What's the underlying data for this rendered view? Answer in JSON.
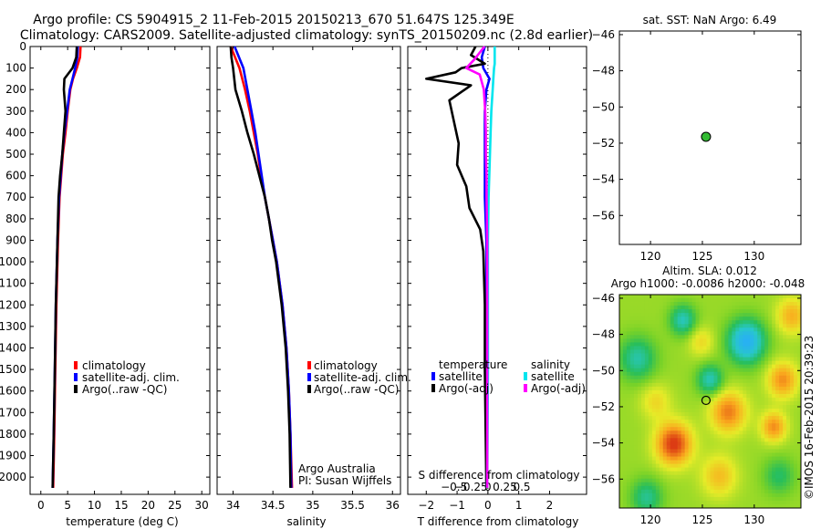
{
  "title": {
    "line1": "Argo profile: CS 5904915_2 11-Feb-2015 20150213_670 51.647S 125.349E",
    "line2": "Climatology: CARS2009. Satellite-adjusted climatology: synTS_20150209.nc (2.8d earlier)"
  },
  "colors": {
    "climatology": "#ff0000",
    "satellite": "#0000ff",
    "argo": "#000000",
    "sal_satellite": "#00e5ee",
    "sal_argo": "#ff00ff",
    "float_marker": "#33bb33"
  },
  "chart_data": [
    {
      "type": "line",
      "name": "temperature",
      "xlabel": "temperature (deg C)",
      "ylabel": "",
      "xlim": [
        -2,
        31.5
      ],
      "ylim": [
        2080,
        0
      ],
      "xticks": [
        0,
        5,
        10,
        15,
        20,
        25,
        30
      ],
      "yticks": [
        0,
        100,
        200,
        300,
        400,
        500,
        600,
        700,
        800,
        900,
        1000,
        1100,
        1200,
        1300,
        1400,
        1500,
        1600,
        1700,
        1800,
        1900,
        2000
      ],
      "legend": [
        "climatology",
        "satellite-adj. clim.",
        "Argo(..raw -QC)"
      ],
      "legend_position": "lower-center",
      "series": [
        {
          "name": "climatology",
          "color": "#ff0000",
          "depth": [
            0,
            50,
            100,
            150,
            200,
            300,
            400,
            500,
            700,
            900,
            1200,
            1500,
            1800,
            2050
          ],
          "values": [
            7.4,
            7.3,
            6.7,
            6.0,
            5.5,
            5.0,
            4.6,
            4.1,
            3.5,
            3.2,
            2.9,
            2.7,
            2.5,
            2.3
          ]
        },
        {
          "name": "satellite-adj. clim.",
          "color": "#0000ff",
          "depth": [
            0,
            50,
            100,
            150,
            200,
            300,
            400,
            500,
            700,
            900,
            1200,
            1500,
            1800,
            2050
          ],
          "values": [
            6.9,
            6.8,
            6.4,
            5.9,
            5.4,
            4.9,
            4.4,
            4.0,
            3.4,
            3.1,
            2.8,
            2.6,
            2.4,
            2.2
          ]
        },
        {
          "name": "Argo(..raw -QC)",
          "color": "#000000",
          "depth": [
            0,
            50,
            100,
            150,
            200,
            300,
            400,
            500,
            600,
            700,
            900,
            1200,
            1500,
            1800,
            2050
          ],
          "values": [
            6.7,
            6.6,
            5.9,
            4.4,
            4.3,
            4.6,
            4.3,
            4.0,
            3.6,
            3.3,
            3.1,
            2.8,
            2.6,
            2.4,
            2.2
          ]
        }
      ]
    },
    {
      "type": "line",
      "name": "salinity",
      "xlabel": "salinity",
      "xlim": [
        33.8,
        36.1
      ],
      "ylim": [
        2080,
        0
      ],
      "xticks": [
        34,
        34.5,
        35,
        35.5,
        36
      ],
      "legend": [
        "climatology",
        "satellite-adj. clim.",
        "Argo(..raw -QC)"
      ],
      "legend_position": "lower-right",
      "annotations": [
        "Argo Australia",
        "PI: Susan Wijffels"
      ],
      "series": [
        {
          "name": "climatology",
          "color": "#ff0000",
          "depth": [
            0,
            100,
            200,
            300,
            400,
            500,
            600,
            700,
            800,
            900,
            1000,
            1200,
            1400,
            1600,
            1800,
            2050
          ],
          "values": [
            33.97,
            34.08,
            34.15,
            34.21,
            34.26,
            34.31,
            34.35,
            34.4,
            34.45,
            34.5,
            34.55,
            34.62,
            34.67,
            34.7,
            34.72,
            34.74
          ]
        },
        {
          "name": "satellite-adj. clim.",
          "color": "#0000ff",
          "depth": [
            0,
            100,
            200,
            300,
            400,
            500,
            600,
            700,
            800,
            900,
            1000,
            1200,
            1400,
            1600,
            1800,
            2050
          ],
          "values": [
            34.02,
            34.13,
            34.18,
            34.23,
            34.28,
            34.32,
            34.36,
            34.4,
            34.45,
            34.5,
            34.55,
            34.62,
            34.67,
            34.7,
            34.72,
            34.73
          ]
        },
        {
          "name": "Argo(..raw -QC)",
          "color": "#000000",
          "depth": [
            0,
            50,
            100,
            200,
            300,
            400,
            500,
            600,
            700,
            800,
            900,
            1000,
            1200,
            1400,
            1600,
            1800,
            2050
          ],
          "values": [
            33.97,
            33.98,
            34.0,
            34.03,
            34.11,
            34.18,
            34.26,
            34.33,
            34.4,
            34.45,
            34.49,
            34.54,
            34.61,
            34.66,
            34.69,
            34.71,
            34.72
          ]
        }
      ]
    },
    {
      "type": "line",
      "name": "difference",
      "xlabel": "T difference from climatology",
      "xlabel_top": "S difference from climatology",
      "xlim": [
        -2.6,
        3.2
      ],
      "ylim": [
        2080,
        0
      ],
      "xticks": [
        -2,
        -1,
        0,
        1,
        2
      ],
      "sticks": [
        -0.5,
        -0.25,
        0,
        0.25,
        0.5
      ],
      "legend_temperature_title": "temperature",
      "legend_salinity_title": "salinity",
      "legend": [
        "satellite",
        "Argo(-adj)",
        "satellite",
        "Argo(-adj)"
      ],
      "series": [
        {
          "name": "T satellite",
          "color": "#0000ff",
          "depth": [
            0,
            50,
            100,
            150,
            200,
            300,
            400,
            500,
            700,
            900,
            1200,
            1500,
            2050
          ],
          "values": [
            -0.1,
            -0.2,
            -0.15,
            0.05,
            -0.05,
            -0.1,
            -0.1,
            -0.1,
            -0.1,
            -0.05,
            -0.05,
            -0.05,
            -0.05
          ]
        },
        {
          "name": "T Argo(-adj)",
          "color": "#000000",
          "depth": [
            0,
            40,
            80,
            100,
            120,
            150,
            180,
            250,
            350,
            450,
            550,
            650,
            750,
            850,
            950,
            1200,
            1500,
            2050
          ],
          "values": [
            -0.4,
            -0.55,
            -0.1,
            -0.85,
            -1.05,
            -2.0,
            -0.55,
            -1.25,
            -1.1,
            -0.95,
            -1.0,
            -0.7,
            -0.6,
            -0.25,
            -0.15,
            -0.1,
            -0.1,
            -0.05
          ]
        },
        {
          "name": "S satellite",
          "color": "#00e5ee",
          "depth": [
            0,
            80,
            100,
            150,
            200,
            300,
            400,
            500,
            700,
            900,
            1200,
            1500,
            2050
          ],
          "values": [
            0.1,
            0.1,
            0.09,
            0.08,
            0.07,
            0.05,
            0.04,
            0.03,
            0.01,
            0.0,
            0.0,
            0.0,
            -0.01
          ]
        },
        {
          "name": "S Argo(-adj)",
          "color": "#ff00ff",
          "depth": [
            0,
            60,
            100,
            130,
            200,
            300,
            400,
            500,
            600,
            700,
            900,
            1200,
            1500,
            2050
          ],
          "values": [
            -0.05,
            -0.2,
            -0.32,
            -0.12,
            -0.06,
            -0.04,
            -0.03,
            -0.03,
            -0.02,
            -0.02,
            -0.01,
            -0.01,
            -0.01,
            -0.01
          ]
        }
      ]
    },
    {
      "type": "scatter",
      "name": "location-sst",
      "title": "sat. SST: NaN Argo: 6.49",
      "xlim": [
        117,
        134.5
      ],
      "ylim": [
        -57.6,
        -45.8
      ],
      "xticks": [
        120,
        125,
        130
      ],
      "yticks": [
        -46,
        -48,
        -50,
        -52,
        -54,
        -56
      ],
      "points": [
        {
          "x": 125.349,
          "y": -51.647
        }
      ]
    },
    {
      "type": "heatmap",
      "name": "sla-map",
      "title": "Altim. SLA: 0.012",
      "subtitle": "Argo h1000: -0.0086 h2000: -0.048",
      "xlim": [
        117,
        134.5
      ],
      "ylim": [
        -57.6,
        -45.8
      ],
      "xticks": [
        120,
        125,
        130
      ],
      "yticks": [
        -46,
        -48,
        -50,
        -52,
        -54,
        -56
      ],
      "points": [
        {
          "x": 125.349,
          "y": -51.647
        }
      ],
      "watermark": "©IMOS 16-Feb-2015 20:39:23"
    }
  ]
}
